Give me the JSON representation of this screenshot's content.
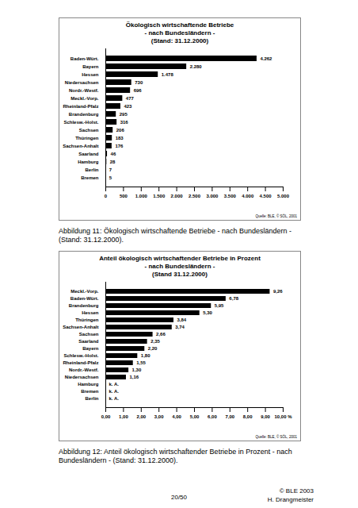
{
  "chart_data": [
    {
      "type": "bar",
      "orientation": "horizontal",
      "data_labels": true,
      "title": "Ökologisch wirtschaftende Betriebe\n- nach Bundesländern -\n(Stand: 31.12.2000)",
      "categories": [
        "Baden-Würt.",
        "Bayern",
        "Hessen",
        "Niedersachsen",
        "Nordr.-Westf.",
        "Meckl.-Vorp.",
        "Rheinland-Pfalz",
        "Brandenburg",
        "Schlesw.-Holst.",
        "Sachsen",
        "Thüringen",
        "Sachsen-Anhalt",
        "Saarland",
        "Hamburg",
        "Berlin",
        "Bremen"
      ],
      "values": [
        4262,
        2280,
        1478,
        730,
        696,
        477,
        423,
        295,
        316,
        206,
        183,
        176,
        46,
        28,
        7,
        5
      ],
      "value_labels": [
        "4.262",
        "2.280",
        "1.478",
        "730",
        "696",
        "477",
        "423",
        "295",
        "316",
        "206",
        "183",
        "176",
        "46",
        "28",
        "7",
        "5"
      ],
      "color": "#000000",
      "xlim": [
        0,
        5000
      ],
      "xticks": [
        0,
        500,
        {
          "value": 1000,
          "label": "1.000"
        },
        {
          "value": 1500,
          "label": "1.500"
        },
        {
          "value": 2000,
          "label": "2.000"
        },
        {
          "value": 2500,
          "label": "2.500"
        },
        {
          "value": 3000,
          "label": "3.000"
        },
        {
          "value": 3500,
          "label": "3.500"
        },
        {
          "value": 4000,
          "label": "4.000"
        },
        {
          "value": 4500,
          "label": "4.500"
        },
        {
          "value": 5000,
          "label": "5.000"
        }
      ],
      "annotations": [
        "Quelle: BLE, © SÖL, 2001"
      ]
    },
    {
      "type": "bar",
      "orientation": "horizontal",
      "data_labels": true,
      "title": "Anteil ökologisch wirtschaftender Betriebe in Prozent\n- nach Bundesländern -\n(Stand 31.12.2000)",
      "categories": [
        "Meckl.-Vorp.",
        "Baden-Würt.",
        "Brandenburg",
        "Hessen",
        "Thüringen",
        "Sachsen-Anhalt",
        "Sachsen",
        "Saarland",
        "Bayern",
        "Schlesw.-Holst.",
        "Rheinland-Pfalz",
        "Nordr.-Westf.",
        "Niedersachsen",
        "Hamburg",
        "Bremen",
        "Berlin"
      ],
      "values": [
        9.26,
        6.78,
        5.95,
        5.3,
        3.84,
        3.74,
        2.66,
        2.35,
        2.2,
        1.8,
        1.55,
        1.3,
        1.16,
        null,
        null,
        null
      ],
      "value_labels": [
        "9,26",
        "6,78",
        "5,95",
        "5,30",
        "3,84",
        "3,74",
        "2,66",
        "2,35",
        "2,20",
        "1,80",
        "1,55",
        "1,30",
        "1,16",
        "k. A.",
        "k. A.",
        "k. A."
      ],
      "color": "#000000",
      "xlim": [
        0,
        10
      ],
      "xticks": [
        {
          "value": 0,
          "label": "0,00"
        },
        {
          "value": 1,
          "label": "1,00"
        },
        {
          "value": 2,
          "label": "2,00"
        },
        {
          "value": 3,
          "label": "3,00"
        },
        {
          "value": 4,
          "label": "4,00"
        },
        {
          "value": 5,
          "label": "5,00"
        },
        {
          "value": 6,
          "label": "6,00"
        },
        {
          "value": 7,
          "label": "7,00"
        },
        {
          "value": 8,
          "label": "8,00"
        },
        {
          "value": 9,
          "label": "9,00"
        },
        {
          "value": 10,
          "label": "10,00 %"
        }
      ],
      "annotations": [
        "Quelle: BLE, © SÖL, 2001"
      ]
    }
  ],
  "captions": [
    "Abbildung 11: Ökologisch wirtschaftende Betriebe - nach Bundesländern - (Stand: 31.12.2000).",
    "Abbildung 12: Anteil ökologisch wirtschaftender Betriebe in Prozent - nach Bundesländern - (Stand: 31.12.2000)."
  ],
  "footer": {
    "page": "20/50",
    "copyright": "© BLE 2003",
    "author": "H. Drangmeister"
  }
}
